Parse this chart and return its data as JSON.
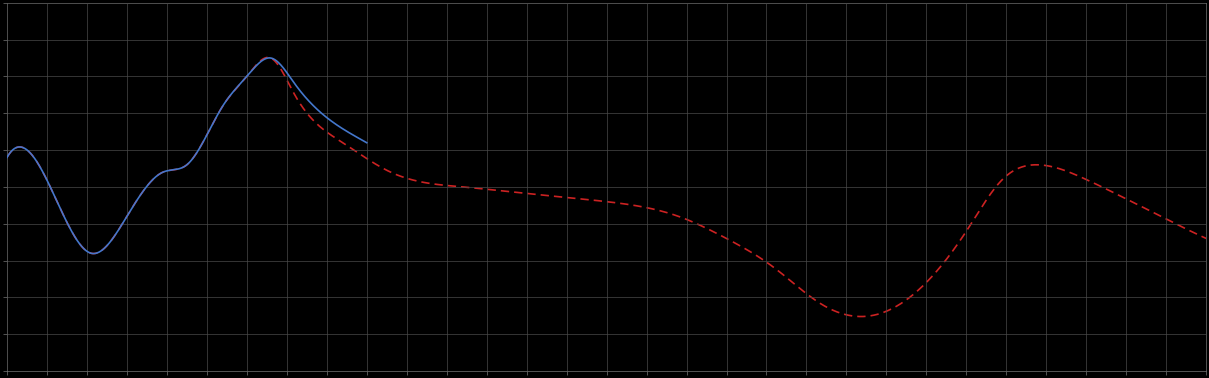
{
  "background_color": "#000000",
  "plot_bg_color": "#000000",
  "grid_color": "#4a4a4a",
  "line1_color": "#4477cc",
  "line2_color": "#cc2222",
  "line_width": 1.2,
  "xlim": [
    0,
    100
  ],
  "ylim": [
    0,
    10
  ],
  "fig_width": 12.09,
  "fig_height": 3.78,
  "n_xticks": 31,
  "n_yticks": 11,
  "blue_end_x": 30,
  "blue_points_x": [
    0,
    3,
    7,
    10,
    13,
    15,
    18,
    20,
    22,
    24,
    27,
    30
  ],
  "blue_points_y": [
    5.8,
    5.4,
    3.2,
    4.2,
    5.4,
    5.6,
    7.2,
    8.0,
    8.5,
    7.8,
    6.8,
    6.2
  ],
  "red_points_x": [
    0,
    3,
    7,
    10,
    13,
    15,
    18,
    20,
    22,
    24,
    28,
    32,
    38,
    44,
    50,
    56,
    60,
    64,
    68,
    72,
    76,
    80,
    83,
    86,
    90,
    95,
    100
  ],
  "red_points_y": [
    5.8,
    5.4,
    3.2,
    4.2,
    5.4,
    5.6,
    7.2,
    8.0,
    8.5,
    7.5,
    6.2,
    5.4,
    5.0,
    4.8,
    4.6,
    4.2,
    3.6,
    2.8,
    1.8,
    1.5,
    2.2,
    3.8,
    5.2,
    5.6,
    5.2,
    4.4,
    3.6
  ]
}
